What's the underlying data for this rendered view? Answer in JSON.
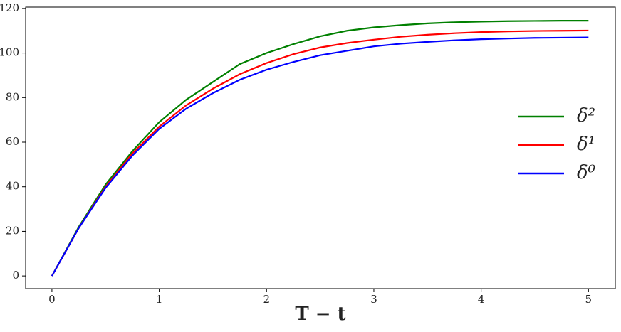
{
  "chart_data": {
    "type": "line",
    "x_label": "T − t",
    "x": [
      0,
      0.25,
      0.5,
      0.75,
      1,
      1.25,
      1.5,
      1.75,
      2,
      2.25,
      2.5,
      2.75,
      3,
      3.25,
      3.5,
      3.75,
      4,
      4.25,
      4.5,
      4.75,
      5
    ],
    "series": [
      {
        "name": "δ²",
        "color": "#008000",
        "values": [
          0,
          22,
          41,
          56,
          69,
          79,
          87,
          95,
          100,
          104,
          107.5,
          110,
          111.5,
          112.5,
          113.3,
          113.8,
          114.1,
          114.3,
          114.4,
          114.5,
          114.5
        ]
      },
      {
        "name": "δ¹",
        "color": "#ff0000",
        "values": [
          0,
          21.5,
          40,
          55,
          67,
          76.5,
          84,
          90.5,
          95.5,
          99.5,
          102.5,
          104.5,
          106,
          107.3,
          108.2,
          108.9,
          109.4,
          109.7,
          109.9,
          110,
          110.1
        ]
      },
      {
        "name": "δ⁰",
        "color": "#0000ff",
        "values": [
          0,
          21.5,
          39.5,
          54,
          66,
          75,
          82,
          88,
          92.5,
          96,
          99,
          101,
          103,
          104.2,
          105,
          105.7,
          106.2,
          106.5,
          106.8,
          106.9,
          107
        ]
      }
    ],
    "xlim": [
      -0.245,
      5.25
    ],
    "xticks": [
      0,
      1,
      2,
      3,
      4,
      5
    ],
    "ylim": [
      -5.7,
      120.6
    ],
    "yticks": [
      0,
      20,
      40,
      60,
      80,
      100,
      120
    ],
    "legend": "right"
  }
}
